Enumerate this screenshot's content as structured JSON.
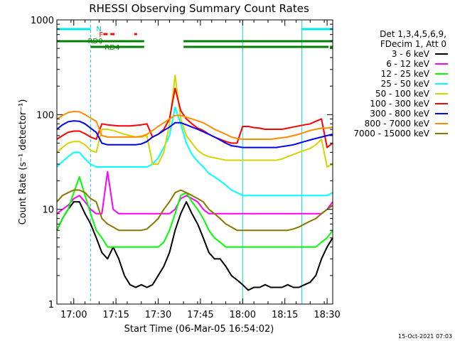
{
  "chart_data": {
    "type": "line",
    "title": "RHESSI Observing Summary Count Rates",
    "xlabel": "Start Time (06-Mar-05 16:54:02)",
    "ylabel": "Count Rate (s⁻¹ detector⁻¹)",
    "yscale": "log",
    "ylim": [
      1,
      1000
    ],
    "xlim_minutes_after_1654": [
      0,
      98
    ],
    "x_tick_labels": [
      "17:00",
      "17:15",
      "17:30",
      "17:45",
      "18:00",
      "18:15",
      "18:30"
    ],
    "x_tick_minutes": [
      6,
      21,
      36,
      51,
      66,
      81,
      96
    ],
    "y_tick_labels": [
      "1",
      "10",
      "100",
      "1000"
    ],
    "y_tick_values": [
      1,
      10,
      100,
      1000
    ],
    "legend_header": [
      "Det 1,3,4,5,6,9,",
      "FDecim 1, Att 0"
    ],
    "legend_position": "right",
    "footer": "15-Oct-2021 07:03",
    "flag_labels": {
      "night": "N",
      "flare": "F",
      "rd0": "RD0",
      "rd4": "RD4"
    },
    "flags": {
      "night": [
        [
          0,
          12
        ],
        [
          87,
          98
        ]
      ],
      "flare": [
        [
          16.5,
          18
        ],
        [
          19,
          20.5
        ],
        [
          27.5,
          28.5
        ]
      ],
      "rd0": [
        [
          0,
          31
        ],
        [
          45,
          98
        ]
      ],
      "rd4": [
        [
          12,
          31
        ],
        [
          45,
          66
        ],
        [
          66,
          96.5
        ],
        [
          97,
          98
        ]
      ]
    },
    "vertical_lines_minutes": [
      0,
      12,
      66,
      87,
      98
    ],
    "series": [
      {
        "name": "3 - 6 keV",
        "color": "#000000",
        "x": [
          0,
          2,
          4,
          6,
          8,
          10,
          12,
          14,
          16,
          18,
          20,
          22,
          24,
          26,
          28,
          30,
          32,
          34,
          36,
          38,
          40,
          42,
          44,
          46,
          48,
          50,
          52,
          54,
          56,
          58,
          60,
          62,
          64,
          66,
          68,
          70,
          72,
          74,
          76,
          78,
          80,
          82,
          84,
          86,
          88,
          90,
          92,
          94,
          96,
          98
        ],
        "y": [
          6,
          8,
          10,
          12,
          12,
          9,
          7,
          5,
          3.5,
          3,
          4,
          3,
          2,
          1.6,
          1.5,
          1.6,
          1.5,
          1.6,
          2,
          2.5,
          3.5,
          6,
          9,
          12,
          9,
          7,
          5,
          3.5,
          3,
          3,
          2.5,
          2,
          1.8,
          1.6,
          1.4,
          1.5,
          1.5,
          1.6,
          1.5,
          1.5,
          1.5,
          1.6,
          1.5,
          1.5,
          1.6,
          1.7,
          2,
          3,
          4,
          5
        ]
      },
      {
        "name": "6 - 12 keV",
        "color": "#ff00ff",
        "x": [
          0,
          2,
          4,
          6,
          8,
          10,
          12,
          14,
          16,
          18,
          20,
          22,
          24,
          26,
          28,
          30,
          32,
          34,
          36,
          38,
          40,
          42,
          44,
          46,
          48,
          50,
          52,
          54,
          56,
          58,
          60,
          62,
          64,
          66,
          68,
          70,
          72,
          74,
          76,
          78,
          80,
          82,
          84,
          86,
          88,
          90,
          92,
          94,
          96,
          98
        ],
        "y": [
          9,
          10,
          11,
          13,
          14,
          12,
          10,
          9,
          9,
          25,
          10,
          9,
          9,
          9,
          9,
          9,
          9,
          9,
          9,
          9,
          9,
          10,
          13,
          14,
          13,
          12,
          10,
          9,
          9,
          9,
          9,
          9,
          9,
          9,
          9,
          9,
          9,
          9,
          9,
          9,
          9,
          9,
          9,
          9,
          9,
          9,
          9,
          9,
          10,
          12
        ]
      },
      {
        "name": "12 - 25 keV",
        "color": "#00ff00",
        "x": [
          0,
          2,
          4,
          6,
          8,
          10,
          12,
          14,
          16,
          18,
          20,
          22,
          24,
          26,
          28,
          30,
          32,
          34,
          36,
          38,
          40,
          42,
          44,
          46,
          48,
          50,
          52,
          54,
          56,
          58,
          60,
          62,
          64,
          66,
          68,
          70,
          72,
          74,
          76,
          78,
          80,
          82,
          84,
          86,
          88,
          90,
          92,
          94,
          96,
          98
        ],
        "y": [
          6,
          8,
          10,
          15,
          22,
          14,
          9,
          6,
          5,
          4,
          4,
          4,
          4,
          4,
          4,
          4,
          4,
          4,
          4,
          4.5,
          6,
          9,
          14,
          15,
          12,
          10,
          8,
          6,
          5,
          4.5,
          4,
          4,
          4,
          4,
          4,
          4,
          4,
          4,
          4,
          4,
          4,
          4,
          4,
          4,
          4,
          4,
          4,
          4.5,
          5,
          6
        ]
      },
      {
        "name": "25 - 50 keV",
        "color": "#00ffff",
        "x": [
          0,
          2,
          4,
          6,
          8,
          10,
          12,
          14,
          16,
          18,
          20,
          22,
          24,
          26,
          28,
          30,
          32,
          34,
          36,
          38,
          40,
          42,
          44,
          46,
          48,
          50,
          52,
          54,
          56,
          58,
          60,
          62,
          64,
          66,
          68,
          70,
          72,
          74,
          76,
          78,
          80,
          82,
          84,
          86,
          88,
          90,
          92,
          94,
          96,
          98
        ],
        "y": [
          28,
          32,
          36,
          40,
          40,
          34,
          30,
          28,
          28,
          28,
          28,
          28,
          28,
          28,
          28,
          28,
          28,
          30,
          35,
          45,
          60,
          120,
          80,
          50,
          38,
          32,
          28,
          24,
          22,
          20,
          18,
          16,
          15,
          14,
          14,
          14,
          14,
          14,
          14,
          14,
          14,
          14,
          14,
          14,
          14,
          14,
          14,
          14,
          14,
          15
        ]
      },
      {
        "name": "50 - 100 keV",
        "color": "#d4d400",
        "x": [
          0,
          2,
          4,
          6,
          8,
          10,
          12,
          14,
          16,
          18,
          20,
          22,
          24,
          26,
          28,
          30,
          32,
          34,
          36,
          38,
          40,
          42,
          44,
          46,
          48,
          50,
          52,
          54,
          56,
          58,
          60,
          62,
          64,
          66,
          68,
          70,
          72,
          74,
          76,
          78,
          80,
          82,
          84,
          86,
          88,
          90,
          92,
          94,
          96,
          98
        ],
        "y": [
          40,
          45,
          50,
          52,
          52,
          48,
          42,
          40,
          70,
          70,
          68,
          65,
          62,
          60,
          58,
          58,
          60,
          30,
          30,
          40,
          80,
          260,
          90,
          60,
          50,
          42,
          38,
          36,
          35,
          34,
          33,
          33,
          33,
          33,
          33,
          33,
          33,
          33,
          33,
          33,
          34,
          36,
          38,
          40,
          42,
          44,
          48,
          55,
          28,
          30
        ]
      },
      {
        "name": "100 - 300 keV",
        "color": "#ff0000",
        "x": [
          0,
          2,
          4,
          6,
          8,
          10,
          12,
          14,
          16,
          18,
          20,
          22,
          24,
          26,
          28,
          30,
          32,
          34,
          36,
          38,
          40,
          42,
          44,
          46,
          48,
          50,
          52,
          54,
          56,
          58,
          60,
          62,
          64,
          66,
          68,
          70,
          72,
          74,
          76,
          78,
          80,
          82,
          84,
          86,
          88,
          90,
          92,
          94,
          96,
          98
        ],
        "y": [
          55,
          60,
          65,
          67,
          67,
          63,
          58,
          55,
          80,
          78,
          77,
          76,
          76,
          76,
          77,
          78,
          80,
          58,
          62,
          70,
          90,
          190,
          110,
          90,
          80,
          72,
          68,
          62,
          58,
          55,
          52,
          50,
          50,
          75,
          75,
          73,
          72,
          70,
          70,
          70,
          70,
          72,
          74,
          76,
          78,
          80,
          85,
          90,
          45,
          50
        ]
      },
      {
        "name": "300 - 800 keV",
        "color": "#0000ff",
        "x": [
          0,
          2,
          4,
          6,
          8,
          10,
          12,
          14,
          16,
          18,
          20,
          22,
          24,
          26,
          28,
          30,
          32,
          34,
          36,
          38,
          40,
          42,
          44,
          46,
          48,
          50,
          52,
          54,
          56,
          58,
          60,
          62,
          64,
          66,
          68,
          70,
          72,
          74,
          76,
          78,
          80,
          82,
          84,
          86,
          88,
          90,
          92,
          94,
          96,
          98
        ],
        "y": [
          70,
          78,
          84,
          86,
          85,
          80,
          72,
          65,
          50,
          48,
          48,
          48,
          48,
          48,
          48,
          49,
          52,
          58,
          62,
          68,
          74,
          82,
          82,
          78,
          74,
          70,
          66,
          62,
          58,
          54,
          50,
          47,
          46,
          45,
          45,
          45,
          45,
          45,
          45,
          45,
          46,
          47,
          48,
          50,
          52,
          54,
          56,
          58,
          60,
          62
        ]
      },
      {
        "name": "800 - 7000 keV",
        "color": "#ff8c00",
        "x": [
          0,
          2,
          4,
          6,
          8,
          10,
          12,
          14,
          16,
          18,
          20,
          22,
          24,
          26,
          28,
          30,
          32,
          34,
          36,
          38,
          40,
          42,
          44,
          46,
          48,
          50,
          52,
          54,
          56,
          58,
          60,
          62,
          64,
          66,
          68,
          70,
          72,
          74,
          76,
          78,
          80,
          82,
          84,
          86,
          88,
          90,
          92,
          94,
          96,
          98
        ],
        "y": [
          90,
          98,
          105,
          108,
          107,
          100,
          92,
          85,
          60,
          58,
          58,
          58,
          58,
          58,
          58,
          59,
          62,
          68,
          75,
          82,
          90,
          98,
          98,
          94,
          90,
          86,
          82,
          76,
          70,
          66,
          62,
          58,
          56,
          55,
          55,
          55,
          55,
          55,
          55,
          56,
          57,
          58,
          60,
          62,
          65,
          68,
          70,
          72,
          72,
          74
        ]
      },
      {
        "name": "7000 - 15000 keV",
        "color": "#8b7500",
        "x": [
          0,
          2,
          4,
          6,
          8,
          10,
          12,
          14,
          16,
          18,
          20,
          22,
          24,
          26,
          28,
          30,
          32,
          34,
          36,
          38,
          40,
          42,
          44,
          46,
          48,
          50,
          52,
          54,
          56,
          58,
          60,
          62,
          64,
          66,
          68,
          70,
          72,
          74,
          76,
          78,
          80,
          82,
          84,
          86,
          88,
          90,
          92,
          94,
          96,
          98
        ],
        "y": [
          12,
          14,
          15,
          16,
          16,
          15,
          13,
          12,
          8,
          7,
          6.5,
          6,
          6,
          6,
          6,
          6,
          6.2,
          7,
          8,
          10,
          12,
          15,
          16,
          15,
          14,
          13,
          12,
          10,
          9,
          8,
          7,
          6.5,
          6,
          6,
          6,
          6,
          6,
          6,
          6,
          6,
          6,
          6,
          6.2,
          6.5,
          7,
          7.5,
          8,
          9,
          10,
          11
        ]
      }
    ]
  }
}
